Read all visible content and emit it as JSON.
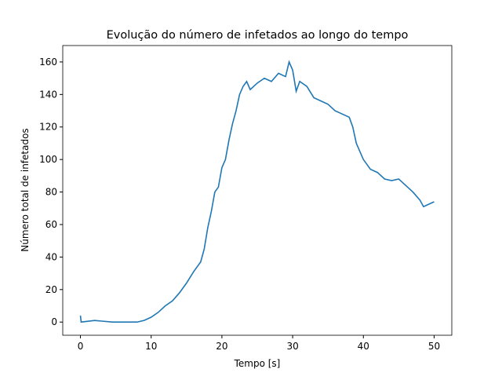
{
  "chart_data": {
    "type": "line",
    "title": "Evolução do número de infetados ao longo do tempo",
    "x_label": "Tempo [s]",
    "y_label": "Número total de infetados",
    "x": [
      0,
      0.1,
      2,
      4.5,
      8,
      9,
      10,
      11,
      12,
      13,
      14,
      15,
      16,
      17,
      17.5,
      18,
      18.5,
      19,
      19.5,
      20,
      20.5,
      21,
      21.5,
      22,
      22.5,
      23,
      23.5,
      24,
      25,
      26,
      27,
      28,
      29,
      29.5,
      30,
      30.5,
      31,
      32,
      33,
      34,
      35,
      36,
      37,
      38,
      38.5,
      39,
      40,
      41,
      42,
      43,
      44,
      45,
      46,
      47,
      48,
      48.5,
      49,
      50
    ],
    "series": [
      {
        "color": "#1f77b4",
        "values": [
          4,
          0,
          1,
          0,
          0,
          1,
          3,
          6,
          10,
          13,
          18,
          24,
          31,
          37,
          45,
          58,
          68,
          80,
          83,
          95,
          100,
          112,
          122,
          130,
          140,
          145,
          148,
          143,
          147,
          150,
          148,
          153,
          151,
          160,
          155,
          142,
          148,
          145,
          138,
          136,
          134,
          130,
          128,
          126,
          120,
          110,
          100,
          94,
          92,
          88,
          87,
          88,
          84,
          80,
          75,
          71,
          72,
          74
        ]
      }
    ],
    "xlim": [
      -2.5,
      52.5
    ],
    "ylim": [
      -8.1,
      170.1
    ],
    "xticks": [
      0,
      10,
      20,
      30,
      40,
      50
    ],
    "yticks": [
      0,
      20,
      40,
      60,
      80,
      100,
      120,
      140,
      160
    ]
  }
}
